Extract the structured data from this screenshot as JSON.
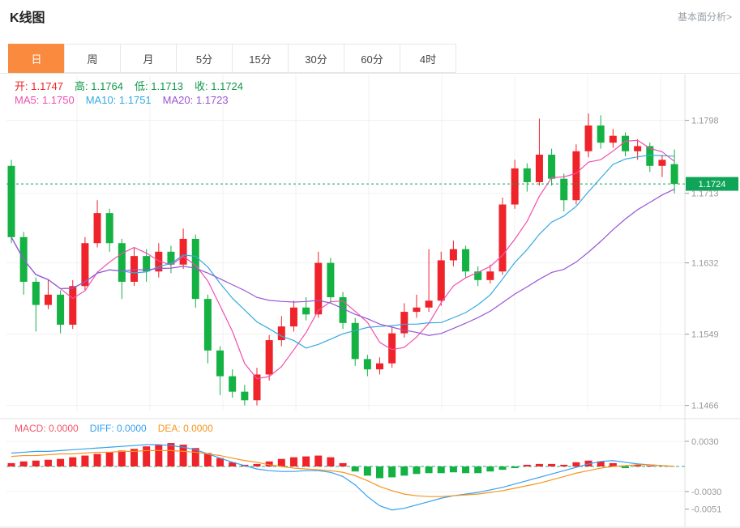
{
  "page": {
    "title": "K线图",
    "link": "基本面分析>"
  },
  "tabs": [
    {
      "label": "日",
      "active": true
    },
    {
      "label": "周",
      "active": false
    },
    {
      "label": "月",
      "active": false
    },
    {
      "label": "5分",
      "active": false
    },
    {
      "label": "15分",
      "active": false
    },
    {
      "label": "30分",
      "active": false
    },
    {
      "label": "60分",
      "active": false
    },
    {
      "label": "4时",
      "active": false
    }
  ],
  "ohlc_legend": [
    {
      "label": "开:",
      "value": "1.1747",
      "color": "#ef232a"
    },
    {
      "label": "高:",
      "value": "1.1764",
      "color": "#0f9948"
    },
    {
      "label": "低:",
      "value": "1.1713",
      "color": "#0f9948"
    },
    {
      "label": "收:",
      "value": "1.1724",
      "color": "#0f9948"
    }
  ],
  "ma_legend": [
    {
      "label": "MA5:",
      "value": "1.1750",
      "color": "#f04fb0"
    },
    {
      "label": "MA10:",
      "value": "1.1751",
      "color": "#35aae0"
    },
    {
      "label": "MA20:",
      "value": "1.1723",
      "color": "#9a55d4"
    }
  ],
  "macd_legend": [
    {
      "label": "MACD:",
      "value": "0.0000",
      "color": "#f0566a"
    },
    {
      "label": "DIFF:",
      "value": "0.0000",
      "color": "#35a0f0"
    },
    {
      "label": "DEA:",
      "value": "0.0000",
      "color": "#f7941e"
    }
  ],
  "colors": {
    "up": "#ef232a",
    "down": "#14b143",
    "ma5": "#f04fb0",
    "ma10": "#35aae0",
    "ma20": "#9a55d4",
    "diff": "#35a0f0",
    "dea": "#f7941e",
    "grid": "#f0f0f0",
    "axis_line": "#e2e2e2",
    "axis_text": "#999999",
    "price_line": "#0fa558",
    "price_pill_bg": "#0fa558",
    "price_pill_text": "#ffffff",
    "macd_zero": "#2fae8f",
    "tab_active_bg": "#fa8b3e",
    "tab_border": "#e7e7e7"
  },
  "chart_data": {
    "type": "candlestick",
    "title": "K线图",
    "interval": "日",
    "price_axis": [
      1.1798,
      1.1713,
      1.1632,
      1.1549,
      1.1466
    ],
    "price_domain": [
      1.146,
      1.1808
    ],
    "current_price": "1.1724",
    "ma_values": {
      "MA5": 1.175,
      "MA10": 1.1751,
      "MA20": 1.1723
    },
    "candles": [
      [
        1.1745,
        1.1752,
        1.1655,
        1.1662
      ],
      [
        1.1662,
        1.1668,
        1.1595,
        1.161
      ],
      [
        1.161,
        1.1615,
        1.1552,
        1.1583
      ],
      [
        1.1583,
        1.1612,
        1.1578,
        1.1595
      ],
      [
        1.1595,
        1.16,
        1.155,
        1.156
      ],
      [
        1.156,
        1.1612,
        1.1555,
        1.1605
      ],
      [
        1.1605,
        1.1662,
        1.16,
        1.1655
      ],
      [
        1.1655,
        1.1705,
        1.165,
        1.169
      ],
      [
        1.169,
        1.1695,
        1.1645,
        1.1655
      ],
      [
        1.1655,
        1.166,
        1.159,
        1.161
      ],
      [
        1.161,
        1.165,
        1.1605,
        1.164
      ],
      [
        1.164,
        1.1648,
        1.161,
        1.1622
      ],
      [
        1.1622,
        1.1655,
        1.1615,
        1.1645
      ],
      [
        1.1645,
        1.1652,
        1.162,
        1.163
      ],
      [
        1.163,
        1.1672,
        1.1625,
        1.166
      ],
      [
        1.166,
        1.1665,
        1.158,
        1.159
      ],
      [
        1.159,
        1.1595,
        1.1515,
        1.153
      ],
      [
        1.153,
        1.1535,
        1.1478,
        1.15
      ],
      [
        1.15,
        1.1508,
        1.1475,
        1.1482
      ],
      [
        1.1482,
        1.149,
        1.1466,
        1.1472
      ],
      [
        1.1472,
        1.151,
        1.1466,
        1.1502
      ],
      [
        1.1502,
        1.1548,
        1.1495,
        1.1542
      ],
      [
        1.1542,
        1.157,
        1.1535,
        1.1558
      ],
      [
        1.1558,
        1.1588,
        1.1552,
        1.158
      ],
      [
        1.158,
        1.1592,
        1.1565,
        1.1572
      ],
      [
        1.1572,
        1.1645,
        1.1568,
        1.1632
      ],
      [
        1.1632,
        1.1638,
        1.1585,
        1.1592
      ],
      [
        1.1592,
        1.1598,
        1.1555,
        1.1562
      ],
      [
        1.1562,
        1.1568,
        1.1512,
        1.152
      ],
      [
        1.152,
        1.1525,
        1.15,
        1.1508
      ],
      [
        1.1508,
        1.1522,
        1.1502,
        1.1515
      ],
      [
        1.1515,
        1.1558,
        1.151,
        1.155
      ],
      [
        1.155,
        1.1585,
        1.1545,
        1.1575
      ],
      [
        1.1575,
        1.1595,
        1.1568,
        1.158
      ],
      [
        1.158,
        1.1648,
        1.1575,
        1.1588
      ],
      [
        1.1588,
        1.1645,
        1.1582,
        1.1635
      ],
      [
        1.1635,
        1.1658,
        1.1628,
        1.1648
      ],
      [
        1.1648,
        1.1652,
        1.1615,
        1.1622
      ],
      [
        1.1622,
        1.1628,
        1.1605,
        1.1612
      ],
      [
        1.1612,
        1.163,
        1.1608,
        1.1622
      ],
      [
        1.1622,
        1.1708,
        1.1618,
        1.17
      ],
      [
        1.17,
        1.1752,
        1.1695,
        1.1742
      ],
      [
        1.1742,
        1.1748,
        1.1715,
        1.1726
      ],
      [
        1.1726,
        1.18,
        1.1722,
        1.1758
      ],
      [
        1.1758,
        1.1765,
        1.1722,
        1.173
      ],
      [
        1.173,
        1.1736,
        1.1692,
        1.1705
      ],
      [
        1.1705,
        1.177,
        1.17,
        1.1762
      ],
      [
        1.1762,
        1.1806,
        1.1755,
        1.1792
      ],
      [
        1.1792,
        1.1804,
        1.1765,
        1.1772
      ],
      [
        1.1772,
        1.1788,
        1.1766,
        1.178
      ],
      [
        1.178,
        1.1784,
        1.1756,
        1.1762
      ],
      [
        1.1762,
        1.1776,
        1.1752,
        1.1768
      ],
      [
        1.1768,
        1.1772,
        1.1738,
        1.1745
      ],
      [
        1.1745,
        1.1758,
        1.1732,
        1.1752
      ],
      [
        1.1747,
        1.1764,
        1.1713,
        1.1724
      ]
    ],
    "macd": {
      "axis": [
        0.003,
        -0.003,
        -0.0051
      ],
      "histogram": [
        0.0004,
        0.0006,
        0.0007,
        0.0008,
        0.0009,
        0.0011,
        0.0013,
        0.0015,
        0.0017,
        0.0019,
        0.0021,
        0.0024,
        0.0026,
        0.0028,
        0.0026,
        0.0022,
        0.0016,
        0.001,
        0.0005,
        0.0002,
        0.0003,
        0.0006,
        0.0009,
        0.0011,
        0.0012,
        0.0013,
        0.0011,
        0.0004,
        -0.0006,
        -0.0011,
        -0.0014,
        -0.0013,
        -0.0011,
        -0.0009,
        -0.0008,
        -0.0008,
        -0.0007,
        -0.0008,
        -0.0008,
        -0.0006,
        -0.0004,
        -0.0002,
        0.0002,
        0.0003,
        0.0003,
        0.0002,
        0.0005,
        0.0007,
        0.0006,
        0.0004,
        -0.0002,
        0.0002,
        0.0001,
        0.0,
        0.0
      ],
      "diff": [
        0.0016,
        0.0017,
        0.0018,
        0.0018,
        0.0019,
        0.002,
        0.0021,
        0.0022,
        0.0023,
        0.0024,
        0.0025,
        0.0026,
        0.0026,
        0.0025,
        0.0023,
        0.002,
        0.0015,
        0.001,
        0.0005,
        0.0001,
        -0.0003,
        -0.0005,
        -0.0006,
        -0.0006,
        -0.0005,
        -0.0005,
        -0.0007,
        -0.0012,
        -0.0022,
        -0.0036,
        -0.0047,
        -0.0052,
        -0.005,
        -0.0046,
        -0.0042,
        -0.0038,
        -0.0035,
        -0.0033,
        -0.0031,
        -0.0028,
        -0.0025,
        -0.0021,
        -0.0017,
        -0.0013,
        -0.0009,
        -0.0005,
        -0.0001,
        0.0003,
        0.0006,
        0.0007,
        0.0005,
        0.0003,
        0.0002,
        0.0001,
        0.0
      ],
      "dea": [
        0.0012,
        0.0013,
        0.0013,
        0.0014,
        0.0015,
        0.0015,
        0.0016,
        0.0017,
        0.0017,
        0.0018,
        0.0018,
        0.0019,
        0.0019,
        0.0019,
        0.0018,
        0.0017,
        0.0015,
        0.0013,
        0.001,
        0.0007,
        0.0005,
        0.0002,
        0.0,
        -0.0002,
        -0.0003,
        -0.0004,
        -0.0005,
        -0.0007,
        -0.0011,
        -0.0017,
        -0.0024,
        -0.0029,
        -0.0033,
        -0.0035,
        -0.0036,
        -0.0036,
        -0.0035,
        -0.0034,
        -0.0033,
        -0.0031,
        -0.0029,
        -0.0026,
        -0.0023,
        -0.002,
        -0.0016,
        -0.0012,
        -0.0008,
        -0.0005,
        -0.0002,
        0.0,
        0.0001,
        0.0002,
        0.0002,
        0.0001,
        0.0
      ]
    }
  }
}
